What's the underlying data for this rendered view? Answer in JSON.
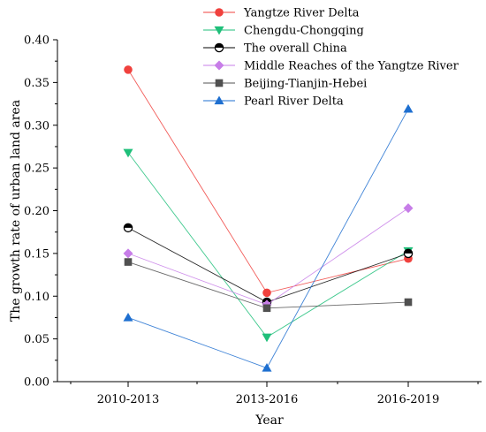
{
  "chart_data": {
    "type": "line",
    "xlabel": "Year",
    "ylabel": "The growth rate of urban land area",
    "categories": [
      "2010-2013",
      "2013-2016",
      "2016-2019"
    ],
    "ylim": [
      0,
      0.4
    ],
    "yticks": [
      "0.00",
      "0.05",
      "0.10",
      "0.15",
      "0.20",
      "0.25",
      "0.30",
      "0.35",
      "0.40"
    ],
    "legend_position": "top",
    "series": [
      {
        "name": "Yangtze River Delta",
        "values": [
          0.365,
          0.104,
          0.144
        ],
        "color": "#f0413d",
        "marker": "circle"
      },
      {
        "name": "Chengdu-Chongqing",
        "values": [
          0.268,
          0.052,
          0.153
        ],
        "color": "#1fbf7a",
        "marker": "triangle-down"
      },
      {
        "name": "The overall China",
        "values": [
          0.18,
          0.093,
          0.15
        ],
        "color": "#000000",
        "marker": "half-circle"
      },
      {
        "name": "Middle Reaches of the Yangtze River",
        "values": [
          0.15,
          0.09,
          0.203
        ],
        "color": "#c77de8",
        "marker": "diamond"
      },
      {
        "name": "Beijing-Tianjin-Hebei",
        "values": [
          0.14,
          0.086,
          0.093
        ],
        "color": "#505050",
        "marker": "square"
      },
      {
        "name": "Pearl River Delta",
        "values": [
          0.075,
          0.016,
          0.319
        ],
        "color": "#1e6fd0",
        "marker": "triangle-up"
      }
    ]
  }
}
